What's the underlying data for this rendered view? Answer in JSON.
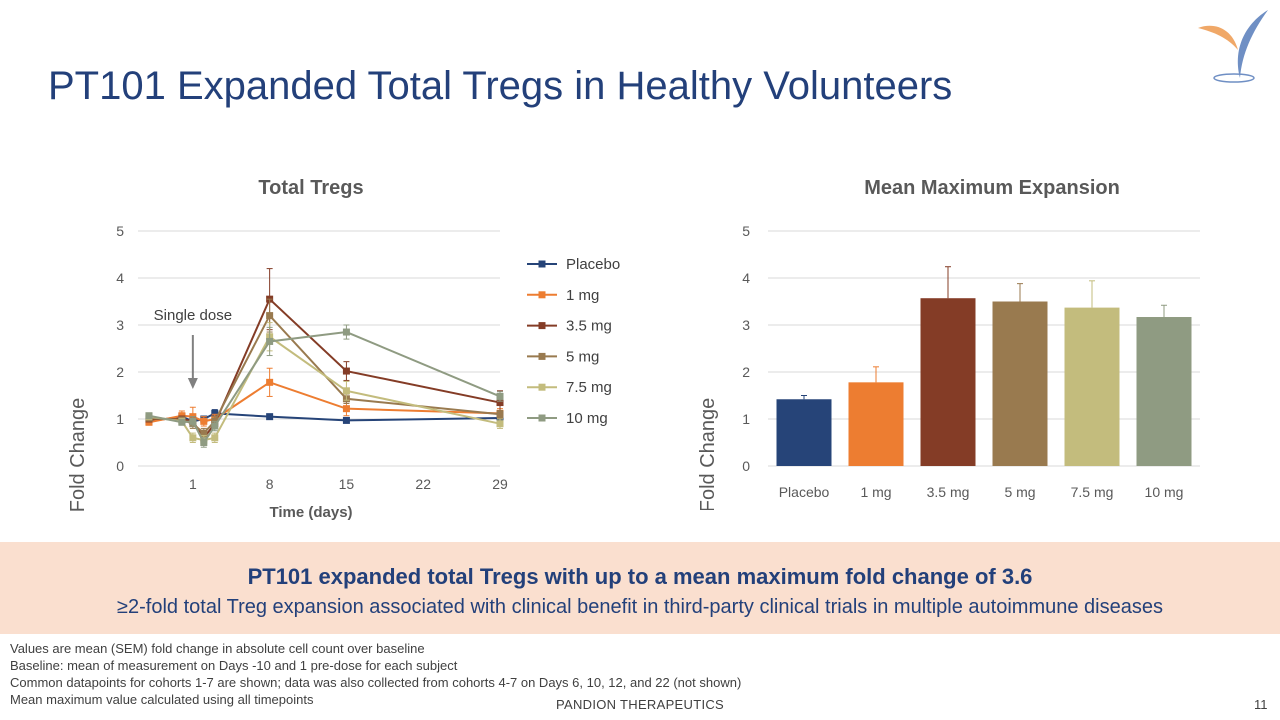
{
  "slide": {
    "title": "PT101 Expanded Total Tregs in Healthy Volunteers",
    "company": "PANDION THERAPEUTICS",
    "page_number": "11"
  },
  "colors": {
    "title": "#23407a",
    "banner_bg": "#fadfcf",
    "placebo": "#264478",
    "1mg": "#ed7d31",
    "3.5mg": "#843c26",
    "5mg": "#997a4f",
    "7.5mg": "#c3bc7d",
    "10mg": "#8f9b82"
  },
  "banner": {
    "headline": "PT101 expanded total Tregs with up to a mean maximum fold change of 3.6",
    "subline": "≥2-fold total Treg expansion associated with clinical benefit in third-party clinical trials in multiple autoimmune diseases"
  },
  "footnotes": [
    "Values are mean (SEM) fold change in absolute cell count over baseline",
    "Baseline: mean of measurement on Days -10 and 1 pre-dose for each subject",
    "Common datapoints for cohorts 1-7 are shown; data was also collected from cohorts 4-7 on Days 6, 10, 12, and 22 (not shown)",
    "Mean maximum value calculated using all timepoints"
  ],
  "chart_data": [
    {
      "type": "line",
      "title": "Total Tregs",
      "xlabel": "Time (days)",
      "ylabel": "Fold Change",
      "xlim": [
        -4,
        29
      ],
      "ylim": [
        0,
        5
      ],
      "yticks": [
        0,
        1,
        2,
        3,
        4,
        5
      ],
      "xticks": [
        1,
        8,
        15,
        22,
        29
      ],
      "grid": true,
      "legend": "right",
      "annotation": "Single dose",
      "annotation_x": 1,
      "x": [
        -3,
        0,
        1,
        2,
        3,
        8,
        15,
        29
      ],
      "series": [
        {
          "name": "Placebo",
          "color": "#264478",
          "values": [
            0.95,
            1.05,
            0.95,
            1.0,
            1.12,
            1.05,
            0.97,
            1.02
          ],
          "sem": [
            0.03,
            0.05,
            0.05,
            0.05,
            0.08,
            0.04,
            0.05,
            0.06
          ]
        },
        {
          "name": "1 mg",
          "color": "#ed7d31",
          "values": [
            0.93,
            1.07,
            1.05,
            0.95,
            1.0,
            1.78,
            1.22,
            1.12
          ],
          "sem": [
            0.05,
            0.1,
            0.2,
            0.1,
            0.1,
            0.3,
            0.15,
            0.1
          ]
        },
        {
          "name": "3.5 mg",
          "color": "#843c26",
          "values": [
            1.0,
            1.0,
            0.95,
            0.6,
            0.9,
            3.55,
            2.02,
            1.35
          ],
          "sem": [
            0.05,
            0.05,
            0.1,
            0.1,
            0.1,
            0.65,
            0.2,
            0.25
          ]
        },
        {
          "name": "5 mg",
          "color": "#997a4f",
          "values": [
            1.02,
            0.98,
            0.9,
            0.7,
            0.95,
            3.2,
            1.43,
            1.1
          ],
          "sem": [
            0.05,
            0.05,
            0.1,
            0.1,
            0.1,
            0.35,
            0.1,
            0.08
          ]
        },
        {
          "name": "7.5 mg",
          "color": "#c3bc7d",
          "values": [
            1.05,
            0.95,
            0.6,
            0.55,
            0.6,
            2.75,
            1.6,
            0.9
          ],
          "sem": [
            0.05,
            0.05,
            0.1,
            0.1,
            0.1,
            0.3,
            0.2,
            0.1
          ]
        },
        {
          "name": "10 mg",
          "color": "#8f9b82",
          "values": [
            1.07,
            0.93,
            0.95,
            0.5,
            0.85,
            2.65,
            2.85,
            1.48
          ],
          "sem": [
            0.05,
            0.05,
            0.1,
            0.1,
            0.1,
            0.3,
            0.15,
            0.1
          ]
        }
      ]
    },
    {
      "type": "bar",
      "title": "Mean Maximum Expansion",
      "xlabel": "",
      "ylabel": "Fold Change",
      "ylim": [
        0,
        5
      ],
      "yticks": [
        0,
        1,
        2,
        3,
        4,
        5
      ],
      "grid": true,
      "categories": [
        "Placebo",
        "1 mg",
        "3.5 mg",
        "5 mg",
        "7.5 mg",
        "10 mg"
      ],
      "values": [
        1.42,
        1.78,
        3.57,
        3.5,
        3.37,
        3.17
      ],
      "sem": [
        0.08,
        0.33,
        0.67,
        0.38,
        0.57,
        0.25
      ],
      "colors": [
        "#264478",
        "#ed7d31",
        "#843c26",
        "#997a4f",
        "#c3bc7d",
        "#8f9b82"
      ]
    }
  ]
}
